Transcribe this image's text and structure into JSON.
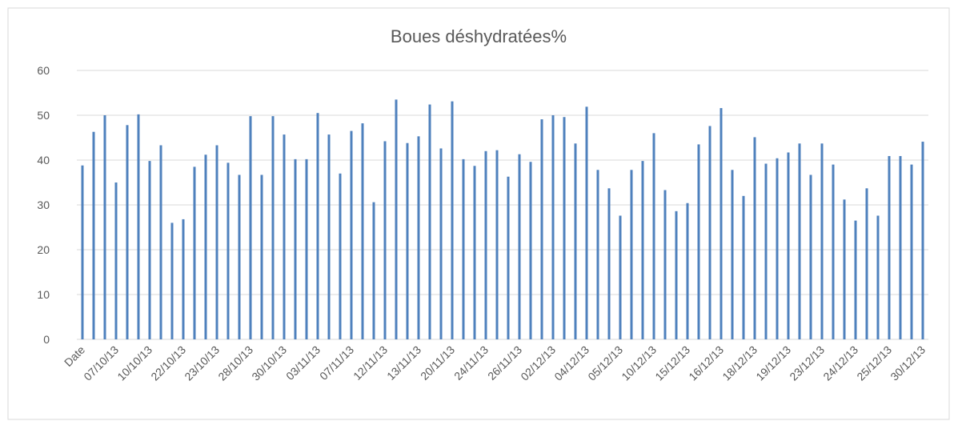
{
  "chart_data": {
    "type": "bar",
    "title": "Boues déshydratées%",
    "categories": [
      "Date",
      null,
      null,
      "07/10/13",
      null,
      null,
      "10/10/13",
      null,
      null,
      "22/10/13",
      null,
      null,
      "23/10/13",
      null,
      null,
      "28/10/13",
      null,
      null,
      "30/10/13",
      null,
      null,
      "03/11/13",
      null,
      null,
      "07/11/13",
      null,
      null,
      "12/11/13",
      null,
      null,
      "13/11/13",
      null,
      null,
      "20/11/13",
      null,
      null,
      "24/11/13",
      null,
      null,
      "26/11/13",
      null,
      null,
      "02/12/13",
      null,
      null,
      "04/12/13",
      null,
      null,
      "05/12/13",
      null,
      null,
      "10/12/13",
      null,
      null,
      "15/12/13",
      null,
      null,
      "16/12/13",
      null,
      null,
      "18/12/13",
      null,
      null,
      "19/12/13",
      null,
      null,
      "23/12/13",
      null,
      null,
      "24/12/13",
      null,
      null,
      "25/12/13",
      null,
      null,
      "30/12/13"
    ],
    "values": [
      38.8,
      46.3,
      50,
      35,
      47.8,
      50.2,
      39.8,
      43.3,
      26,
      26.8,
      38.5,
      41.2,
      43.3,
      39.4,
      36.7,
      49.8,
      36.7,
      49.8,
      45.7,
      40.2,
      40.2,
      50.5,
      45.7,
      37,
      46.5,
      48.2,
      30.6,
      44.2,
      53.5,
      43.8,
      45.3,
      52.4,
      42.6,
      53.1,
      40.2,
      38.7,
      42,
      42.2,
      36.3,
      41.3,
      39.6,
      49.1,
      50,
      49.6,
      43.7,
      51.9,
      37.8,
      33.7,
      27.6,
      37.8,
      39.8,
      46,
      33.3,
      28.6,
      30.4,
      43.5,
      47.6,
      51.6,
      37.8,
      32,
      45.1,
      39.2,
      40.4,
      41.7,
      43.7,
      36.7,
      43.7,
      39,
      31.2,
      26.5,
      33.7,
      27.6,
      40.9,
      40.9,
      39,
      44.1
    ],
    "color": "#4f81bd",
    "ylim": [
      0,
      60
    ],
    "yticks": [
      0,
      10,
      20,
      30,
      40,
      50,
      60
    ],
    "grid": true
  }
}
